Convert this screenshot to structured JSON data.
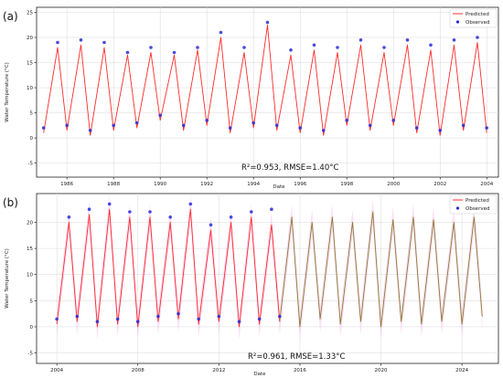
{
  "chart_data": [
    {
      "type": "line",
      "panel_label": "(a)",
      "xlabel": "Date",
      "ylabel": "Water Temperature (°C)",
      "xlim": [
        1984.7,
        2004.5
      ],
      "ylim": [
        -7.8,
        26
      ],
      "yticks": [
        -5,
        0,
        5,
        10,
        15,
        20,
        25
      ],
      "xticks": [
        "1986",
        "1988",
        "1990",
        "1992",
        "1994",
        "1996",
        "1998",
        "2000",
        "2002",
        "2004"
      ],
      "grid": true,
      "legend": {
        "placement": "top-right",
        "entries": [
          "Predicted",
          "Observed"
        ]
      },
      "annotation": "R²=0.953, RMSE=1.40°C",
      "colors": {
        "predicted": "#ff2b2b",
        "observed": "#2a2ad8"
      },
      "series": [
        {
          "name": "Predicted",
          "style": "line",
          "x": [
            1985.0,
            1985.6,
            1986.0,
            1986.6,
            1987.0,
            1987.6,
            1988.0,
            1988.6,
            1989.0,
            1989.6,
            1990.0,
            1990.6,
            1991.0,
            1991.6,
            1992.0,
            1992.6,
            1993.0,
            1993.6,
            1994.0,
            1994.6,
            1995.0,
            1995.6,
            1996.0,
            1996.6,
            1997.0,
            1997.6,
            1998.0,
            1998.6,
            1999.0,
            1999.6,
            2000.0,
            2000.6,
            2001.0,
            2001.6,
            2002.0,
            2002.6,
            2003.0,
            2003.6,
            2004.0
          ],
          "y": [
            1.0,
            18.0,
            1.5,
            18.5,
            0.5,
            18.0,
            1.5,
            16.5,
            2.0,
            17.0,
            3.5,
            16.5,
            1.5,
            17.5,
            2.5,
            20.0,
            1.0,
            17.0,
            2.0,
            22.5,
            1.5,
            16.5,
            1.0,
            17.5,
            0.5,
            17.0,
            2.5,
            18.5,
            1.5,
            17.0,
            2.5,
            18.5,
            1.0,
            17.5,
            0.5,
            18.5,
            1.5,
            19.0,
            1.0
          ]
        },
        {
          "name": "Observed",
          "style": "scatter",
          "x": [
            1985.0,
            1985.6,
            1986.0,
            1986.6,
            1987.0,
            1987.6,
            1988.0,
            1988.6,
            1989.0,
            1989.6,
            1990.0,
            1990.6,
            1991.0,
            1991.6,
            1992.0,
            1992.6,
            1993.0,
            1993.6,
            1994.0,
            1994.6,
            1995.0,
            1995.6,
            1996.0,
            1996.6,
            1997.0,
            1997.6,
            1998.0,
            1998.6,
            1999.0,
            1999.6,
            2000.0,
            2000.6,
            2001.0,
            2001.6,
            2002.0,
            2002.6,
            2003.0,
            2003.6,
            2004.0
          ],
          "y": [
            2.0,
            19.0,
            2.5,
            19.5,
            1.5,
            19.0,
            2.5,
            17.0,
            3.0,
            18.0,
            4.5,
            17.0,
            2.5,
            18.0,
            3.5,
            21.0,
            2.0,
            18.0,
            3.0,
            23.0,
            2.5,
            17.5,
            2.0,
            18.5,
            1.5,
            18.0,
            3.5,
            19.5,
            2.5,
            18.0,
            3.5,
            19.5,
            2.0,
            18.5,
            1.5,
            19.5,
            2.5,
            20.0,
            2.0
          ]
        }
      ]
    },
    {
      "type": "line",
      "panel_label": "(b)",
      "xlabel": "Date",
      "ylabel": "Water Temperature (°C)",
      "xlim": [
        2003.0,
        2025.8
      ],
      "ylim": [
        -7.0,
        25.5
      ],
      "yticks": [
        -5,
        0,
        5,
        10,
        15,
        20
      ],
      "xticks": [
        "2004",
        "2008",
        "2012",
        "2016",
        "2020",
        "2024"
      ],
      "grid": true,
      "legend": {
        "placement": "top-right",
        "entries": [
          "Predicted",
          "Observed"
        ]
      },
      "annotation": "R²=0.961, RMSE=1.33°C",
      "colors": {
        "predicted": "#ff2b2b",
        "observed": "#2a2ad8",
        "uncertainty_band": "#f3a8ea",
        "forecast_line": "#8f7a32"
      },
      "series": [
        {
          "name": "Predicted",
          "style": "line",
          "x": [
            2004.0,
            2004.6,
            2005.0,
            2005.6,
            2006.0,
            2006.6,
            2007.0,
            2007.6,
            2008.0,
            2008.6,
            2009.0,
            2009.6,
            2010.0,
            2010.6,
            2011.0,
            2011.6,
            2012.0,
            2012.6,
            2013.0,
            2013.6,
            2014.0,
            2014.6,
            2015.0,
            2015.6,
            2016.0,
            2016.6,
            2017.0,
            2017.6,
            2018.0,
            2018.6,
            2019.0,
            2019.6,
            2020.0,
            2020.6,
            2021.0,
            2021.6,
            2022.0,
            2022.6,
            2023.0,
            2023.6,
            2024.0,
            2024.6,
            2025.0
          ],
          "y": [
            0.5,
            20.0,
            1.0,
            21.5,
            0.0,
            22.5,
            0.5,
            21.0,
            0.0,
            21.0,
            1.0,
            20.0,
            1.5,
            22.5,
            0.5,
            18.5,
            1.0,
            20.0,
            0.0,
            21.0,
            0.5,
            19.5,
            1.0,
            21.0,
            0.0,
            20.0,
            1.5,
            21.0,
            0.5,
            20.0,
            1.0,
            22.0,
            0.0,
            20.5,
            1.0,
            21.0,
            0.5,
            20.5,
            1.0,
            20.0,
            0.5,
            21.0,
            2.0
          ]
        },
        {
          "name": "Observed",
          "style": "scatter",
          "x": [
            2004.0,
            2004.6,
            2005.0,
            2005.6,
            2006.0,
            2006.6,
            2007.0,
            2007.6,
            2008.0,
            2008.6,
            2009.0,
            2009.6,
            2010.0,
            2010.6,
            2011.0,
            2011.6,
            2012.0,
            2012.6,
            2013.0,
            2013.6,
            2014.0,
            2014.6,
            2015.0
          ],
          "y": [
            1.5,
            21.0,
            2.0,
            22.5,
            1.0,
            23.5,
            1.5,
            22.0,
            1.0,
            22.0,
            2.0,
            21.0,
            2.5,
            23.5,
            1.5,
            19.5,
            2.0,
            21.0,
            1.0,
            22.0,
            1.5,
            22.5,
            2.0
          ]
        }
      ]
    }
  ]
}
